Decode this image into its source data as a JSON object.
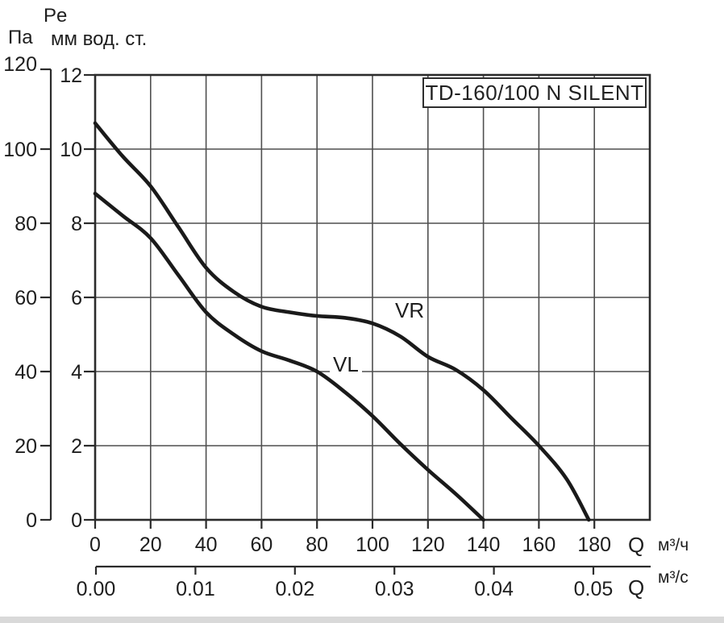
{
  "header": {
    "pressure_symbol": "Pe",
    "unit_pa": "Па",
    "unit_mm": "мм вод. ст."
  },
  "title_box": {
    "label": "TD-160/100 N SILENT"
  },
  "chart_data": {
    "type": "line",
    "title": "TD-160/100 N SILENT",
    "grid": true,
    "legend_position": "labels-on-curves",
    "x_axis_primary": {
      "symbol": "Q",
      "unit": "м³/ч",
      "ticks": [
        0,
        20,
        40,
        60,
        80,
        100,
        120,
        140,
        160,
        180
      ],
      "range": [
        0,
        200
      ]
    },
    "x_axis_secondary": {
      "symbol": "Q",
      "unit": "м³/с",
      "ticks": [
        "0.00",
        "0.01",
        "0.02",
        "0.03",
        "0.04",
        "0.05"
      ],
      "range": [
        0,
        0.0558
      ]
    },
    "y_axis_pa": {
      "unit": "Па",
      "ticks": [
        120,
        100,
        80,
        60,
        40,
        20,
        0
      ],
      "range": [
        0,
        120
      ]
    },
    "y_axis_mm": {
      "unit": "мм вод. ст.",
      "ticks": [
        12,
        10,
        8,
        6,
        4,
        2,
        0
      ],
      "range": [
        0,
        12
      ],
      "pa_per_unit": 10
    },
    "series": [
      {
        "name": "VR",
        "points_q_pa": [
          [
            0,
            107
          ],
          [
            10,
            98
          ],
          [
            20,
            90
          ],
          [
            30,
            79
          ],
          [
            40,
            68
          ],
          [
            50,
            61.5
          ],
          [
            60,
            57.5
          ],
          [
            70,
            56
          ],
          [
            80,
            55
          ],
          [
            90,
            54.5
          ],
          [
            100,
            53
          ],
          [
            110,
            49.5
          ],
          [
            120,
            44
          ],
          [
            130,
            40.5
          ],
          [
            140,
            35
          ],
          [
            150,
            27.5
          ],
          [
            160,
            20
          ],
          [
            170,
            11
          ],
          [
            178,
            0
          ]
        ]
      },
      {
        "name": "VL",
        "points_q_pa": [
          [
            0,
            88
          ],
          [
            10,
            82
          ],
          [
            20,
            76
          ],
          [
            30,
            66
          ],
          [
            40,
            56
          ],
          [
            50,
            50
          ],
          [
            60,
            45.5
          ],
          [
            70,
            43
          ],
          [
            80,
            40
          ],
          [
            90,
            34.5
          ],
          [
            100,
            28
          ],
          [
            110,
            20.5
          ],
          [
            120,
            13.5
          ],
          [
            130,
            7
          ],
          [
            140,
            0
          ]
        ]
      }
    ]
  },
  "colors": {
    "background": "#ffffff",
    "curve": "#1a1a1a",
    "grid": "#4f4f4f",
    "axis": "#2b2b2b",
    "text": "#1e1e1e"
  }
}
